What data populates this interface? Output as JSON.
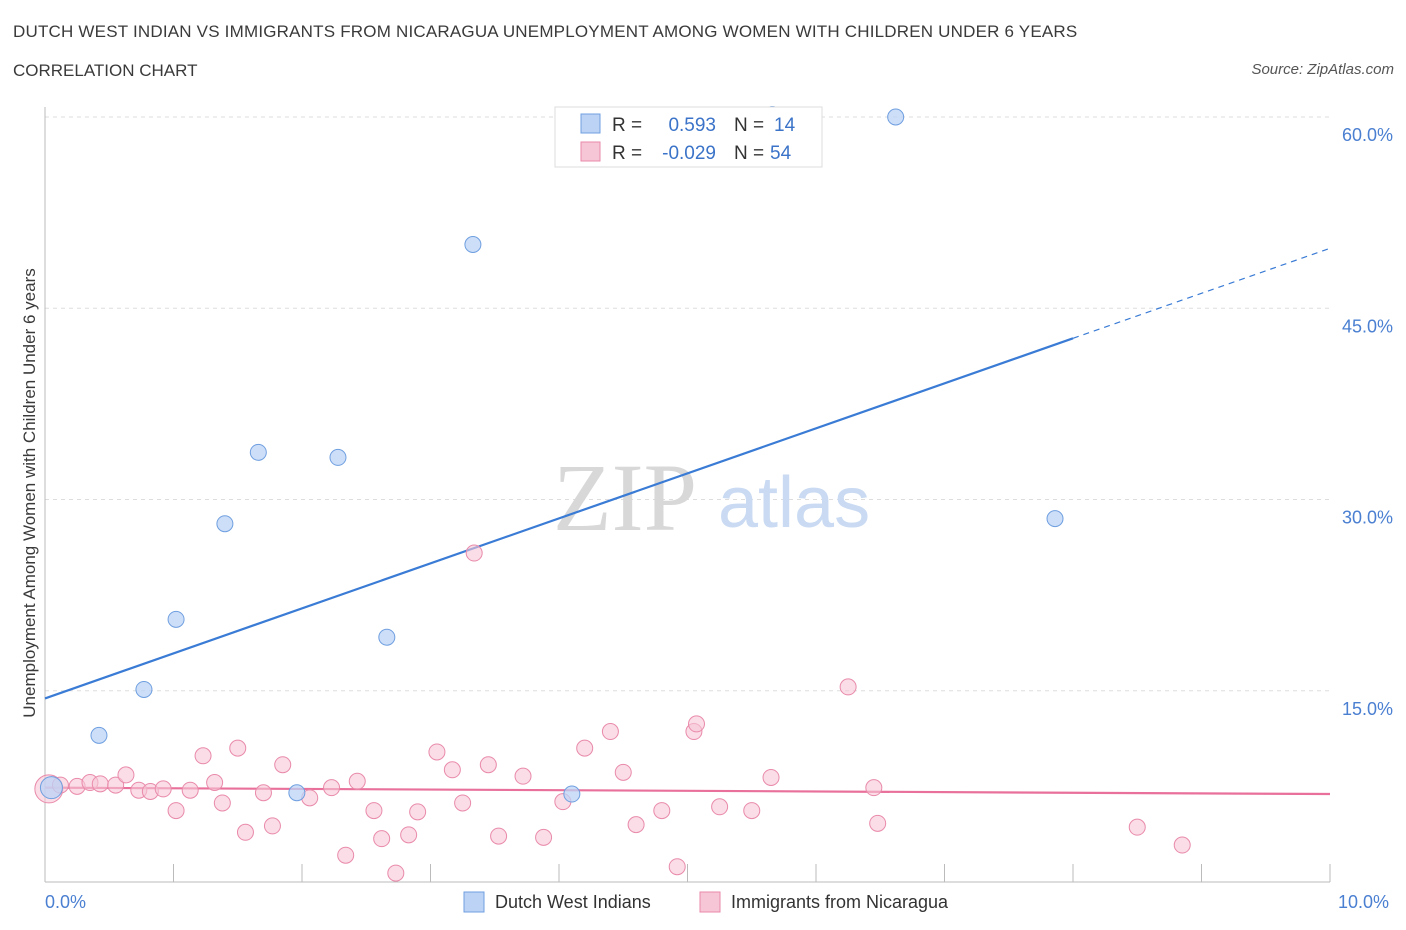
{
  "title": "DUTCH WEST INDIAN VS IMMIGRANTS FROM NICARAGUA UNEMPLOYMENT AMONG WOMEN WITH CHILDREN UNDER 6 YEARS",
  "subtitle": "CORRELATION CHART",
  "source": "Source: ZipAtlas.com",
  "watermark": {
    "zip": "ZIP",
    "atlas": "atlas"
  },
  "colors": {
    "blue_fill": "#bcd3f5",
    "blue_stroke": "#6f9fe0",
    "blue_line": "#3a7bd5",
    "pink_fill": "#f7c6d6",
    "pink_stroke": "#e98aaa",
    "pink_line": "#e8709a",
    "grid": "#dddddd",
    "axis": "#bbbbbb"
  },
  "legend": {
    "rows": [
      {
        "r_label": "R =",
        "r_value": "0.593",
        "n_label": "N =",
        "n_value": "14"
      },
      {
        "r_label": "R =",
        "r_value": "-0.029",
        "n_label": "N =",
        "n_value": "54"
      }
    ]
  },
  "bottom_legend": [
    "Dutch West Indians",
    "Immigrants from Nicaragua"
  ],
  "chart_data": {
    "type": "scatter",
    "title": "DUTCH WEST INDIAN VS IMMIGRANTS FROM NICARAGUA UNEMPLOYMENT AMONG WOMEN WITH CHILDREN UNDER 6 YEARS",
    "xlabel": "",
    "ylabel": "Unemployment Among Women with Children Under 6 years",
    "xlim": [
      0,
      10
    ],
    "ylim": [
      0,
      60
    ],
    "x_tick_labels": [
      "0.0%",
      "10.0%"
    ],
    "y_ticks": [
      15,
      30,
      45,
      60
    ],
    "y_tick_labels": [
      "15.0%",
      "30.0%",
      "45.0%",
      "60.0%"
    ],
    "series": [
      {
        "name": "Dutch West Indians",
        "R": 0.593,
        "N": 14,
        "trend": {
          "y_at_0": 14.4,
          "slope": 3.53,
          "solid_to_x": 8.0,
          "dashed_to_x": 10.0
        },
        "points": [
          {
            "x": 0.05,
            "y": 7.4
          },
          {
            "x": 0.42,
            "y": 11.5
          },
          {
            "x": 0.77,
            "y": 15.1
          },
          {
            "x": 1.02,
            "y": 20.6
          },
          {
            "x": 1.4,
            "y": 28.1
          },
          {
            "x": 1.66,
            "y": 33.7
          },
          {
            "x": 1.96,
            "y": 7.0
          },
          {
            "x": 2.28,
            "y": 33.3
          },
          {
            "x": 2.66,
            "y": 19.2
          },
          {
            "x": 3.33,
            "y": 50.0
          },
          {
            "x": 4.1,
            "y": 6.9
          },
          {
            "x": 5.66,
            "y": 60.2
          },
          {
            "x": 6.62,
            "y": 60.0
          },
          {
            "x": 7.86,
            "y": 28.5
          }
        ]
      },
      {
        "name": "Immigrants from Nicaragua",
        "R": -0.029,
        "N": 54,
        "trend": {
          "y_at_0": 7.4,
          "slope": -0.05,
          "solid_to_x": 10.0
        },
        "points": [
          {
            "x": 0.03,
            "y": 7.3
          },
          {
            "x": 0.12,
            "y": 7.6
          },
          {
            "x": 0.25,
            "y": 7.5
          },
          {
            "x": 0.35,
            "y": 7.8
          },
          {
            "x": 0.43,
            "y": 7.7
          },
          {
            "x": 0.55,
            "y": 7.6
          },
          {
            "x": 0.63,
            "y": 8.4
          },
          {
            "x": 0.73,
            "y": 7.2
          },
          {
            "x": 0.82,
            "y": 7.1
          },
          {
            "x": 0.92,
            "y": 7.3
          },
          {
            "x": 1.02,
            "y": 5.6
          },
          {
            "x": 1.13,
            "y": 7.2
          },
          {
            "x": 1.23,
            "y": 9.9
          },
          {
            "x": 1.32,
            "y": 7.8
          },
          {
            "x": 1.38,
            "y": 6.2
          },
          {
            "x": 1.5,
            "y": 10.5
          },
          {
            "x": 1.56,
            "y": 3.9
          },
          {
            "x": 1.7,
            "y": 7.0
          },
          {
            "x": 1.77,
            "y": 4.4
          },
          {
            "x": 1.85,
            "y": 9.2
          },
          {
            "x": 2.06,
            "y": 6.6
          },
          {
            "x": 2.23,
            "y": 7.4
          },
          {
            "x": 2.34,
            "y": 2.1
          },
          {
            "x": 2.43,
            "y": 7.9
          },
          {
            "x": 2.56,
            "y": 5.6
          },
          {
            "x": 2.62,
            "y": 3.4
          },
          {
            "x": 2.73,
            "y": 0.7
          },
          {
            "x": 2.83,
            "y": 3.7
          },
          {
            "x": 2.9,
            "y": 5.5
          },
          {
            "x": 3.05,
            "y": 10.2
          },
          {
            "x": 3.17,
            "y": 8.8
          },
          {
            "x": 3.25,
            "y": 6.2
          },
          {
            "x": 3.34,
            "y": 25.8
          },
          {
            "x": 3.45,
            "y": 9.2
          },
          {
            "x": 3.53,
            "y": 3.6
          },
          {
            "x": 3.72,
            "y": 8.3
          },
          {
            "x": 3.88,
            "y": 3.5
          },
          {
            "x": 4.03,
            "y": 6.3
          },
          {
            "x": 4.2,
            "y": 10.5
          },
          {
            "x": 4.4,
            "y": 11.8
          },
          {
            "x": 4.5,
            "y": 8.6
          },
          {
            "x": 4.6,
            "y": 4.5
          },
          {
            "x": 4.8,
            "y": 5.6
          },
          {
            "x": 4.92,
            "y": 1.2
          },
          {
            "x": 5.05,
            "y": 11.8
          },
          {
            "x": 5.07,
            "y": 12.4
          },
          {
            "x": 5.25,
            "y": 5.9
          },
          {
            "x": 5.5,
            "y": 5.6
          },
          {
            "x": 5.65,
            "y": 8.2
          },
          {
            "x": 6.25,
            "y": 15.3
          },
          {
            "x": 6.45,
            "y": 7.4
          },
          {
            "x": 6.48,
            "y": 4.6
          },
          {
            "x": 8.5,
            "y": 4.3
          },
          {
            "x": 8.85,
            "y": 2.9
          }
        ]
      }
    ]
  }
}
